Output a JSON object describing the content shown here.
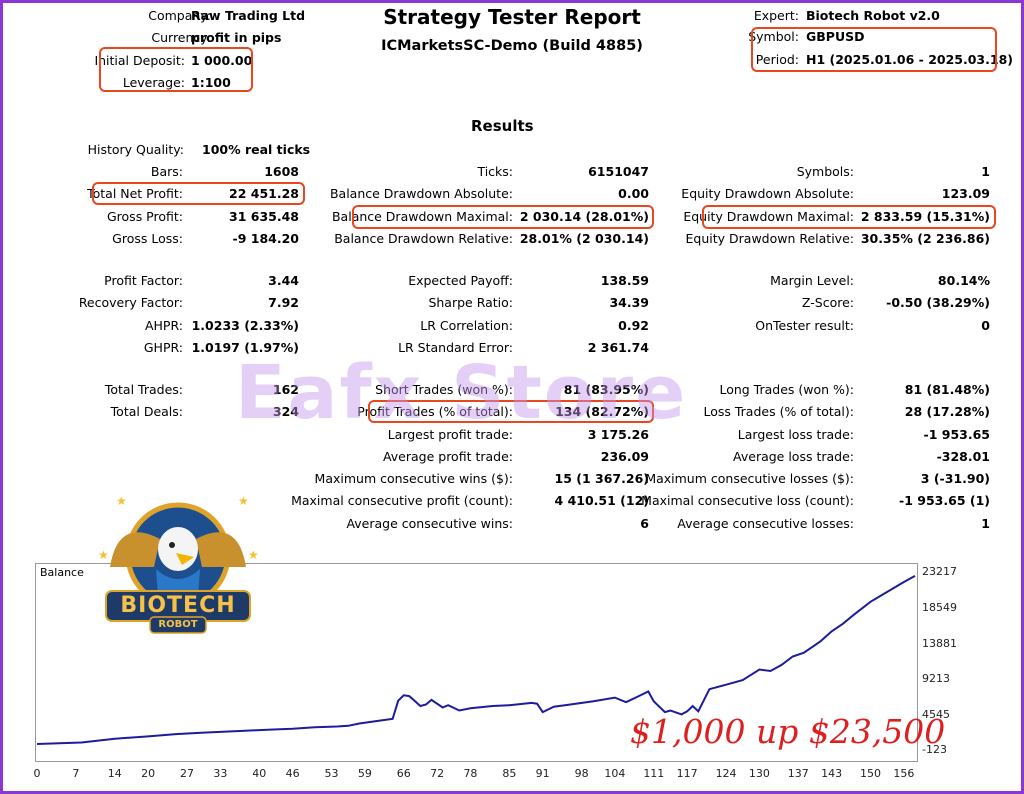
{
  "header": {
    "title": "Strategy Tester Report",
    "subtitle": "ICMarketsSC-Demo (Build 4885)",
    "company_label": "Company:",
    "company_value": "Raw Trading Ltd",
    "currency_label": "Currency:",
    "currency_value": "profit in pips",
    "deposit_label": "Initial Deposit:",
    "deposit_value": "1 000.00",
    "leverage_label": "Leverage:",
    "leverage_value": "1:100",
    "expert_label": "Expert:",
    "expert_value": "Biotech Robot v2.0",
    "symbol_label": "Symbol:",
    "symbol_value": "GBPUSD",
    "period_label": "Period:",
    "period_value": "H1 (2025.01.06 - 2025.03.18)"
  },
  "results": {
    "heading": "Results",
    "history_quality_label": "History Quality:",
    "history_quality_value": "100% real ticks",
    "col1": [
      {
        "label": "Bars:",
        "value": "1608"
      },
      {
        "label": "Total Net Profit:",
        "value": "22 451.28"
      },
      {
        "label": "Gross Profit:",
        "value": "31 635.48"
      },
      {
        "label": "Gross Loss:",
        "value": "-9 184.20"
      },
      {
        "label": "Profit Factor:",
        "value": "3.44"
      },
      {
        "label": "Recovery Factor:",
        "value": "7.92"
      },
      {
        "label": "AHPR:",
        "value": "1.0233 (2.33%)"
      },
      {
        "label": "GHPR:",
        "value": "1.0197 (1.97%)"
      },
      {
        "label": "Total Trades:",
        "value": "162"
      },
      {
        "label": "Total Deals:",
        "value": "324"
      }
    ],
    "col2": [
      {
        "label": "Ticks:",
        "value": "6151047"
      },
      {
        "label": "Balance Drawdown Absolute:",
        "value": "0.00"
      },
      {
        "label": "Balance Drawdown Maximal:",
        "value": "2 030.14 (28.01%)"
      },
      {
        "label": "Balance Drawdown Relative:",
        "value": "28.01% (2 030.14)"
      },
      {
        "label": "Expected Payoff:",
        "value": "138.59"
      },
      {
        "label": "Sharpe Ratio:",
        "value": "34.39"
      },
      {
        "label": "LR Correlation:",
        "value": "0.92"
      },
      {
        "label": "LR Standard Error:",
        "value": "2 361.74"
      },
      {
        "label": "Short Trades (won %):",
        "value": "81 (83.95%)"
      },
      {
        "label": "Profit Trades (% of total):",
        "value": "134 (82.72%)"
      },
      {
        "label": "Largest profit trade:",
        "value": "3 175.26"
      },
      {
        "label": "Average profit trade:",
        "value": "236.09"
      },
      {
        "label": "Maximum consecutive wins ($):",
        "value": "15 (1 367.26)"
      },
      {
        "label": "Maximal consecutive profit (count):",
        "value": "4 410.51 (12)"
      },
      {
        "label": "Average consecutive wins:",
        "value": "6"
      }
    ],
    "col3": [
      {
        "label": "Symbols:",
        "value": "1"
      },
      {
        "label": "Equity Drawdown Absolute:",
        "value": "123.09"
      },
      {
        "label": "Equity Drawdown Maximal:",
        "value": "2 833.59 (15.31%)"
      },
      {
        "label": "Equity Drawdown Relative:",
        "value": "30.35% (2 236.86)"
      },
      {
        "label": "Margin Level:",
        "value": "80.14%"
      },
      {
        "label": "Z-Score:",
        "value": "-0.50 (38.29%)"
      },
      {
        "label": "OnTester result:",
        "value": "0"
      },
      {
        "label": "Long Trades (won %):",
        "value": "81 (81.48%)"
      },
      {
        "label": "Loss Trades (% of total):",
        "value": "28 (17.28%)"
      },
      {
        "label": "Largest loss trade:",
        "value": "-1 953.65"
      },
      {
        "label": "Average loss trade:",
        "value": "-328.01"
      },
      {
        "label": "Maximum consecutive losses ($):",
        "value": "3 (-31.90)"
      },
      {
        "label": "Maximal consecutive loss (count):",
        "value": "-1 953.65 (1)"
      },
      {
        "label": "Average consecutive losses:",
        "value": "1"
      }
    ]
  },
  "overlay": {
    "watermark": "Eafx Store",
    "badge_line1": "BIOTECH",
    "badge_line2": "ROBOT",
    "promo": "$1,000 up $23,500"
  },
  "chart_data": {
    "type": "line",
    "title": "Balance",
    "xlabel": "",
    "ylabel": "",
    "x_ticks": [
      0,
      7,
      14,
      20,
      27,
      33,
      40,
      46,
      53,
      59,
      66,
      72,
      78,
      85,
      91,
      98,
      104,
      111,
      117,
      124,
      130,
      137,
      143,
      150,
      156
    ],
    "y_ticks": [
      -123,
      4545,
      9213,
      13881,
      18549,
      23217
    ],
    "xlim": [
      0,
      158
    ],
    "ylim": [
      -1300,
      24200
    ],
    "series": [
      {
        "name": "Balance",
        "x": [
          0,
          4,
          8,
          14,
          20,
          25,
          30,
          36,
          42,
          46,
          50,
          54,
          56,
          58,
          62,
          64,
          65,
          66,
          67,
          69,
          70,
          71,
          73,
          74,
          76,
          78,
          82,
          85,
          89,
          90,
          91,
          93,
          95,
          100,
          104,
          106,
          108,
          110,
          111,
          113,
          114,
          116,
          117,
          118,
          119,
          121,
          124,
          127,
          130,
          132,
          134,
          136,
          138,
          141,
          143,
          145,
          147,
          150,
          153,
          156,
          158
        ],
        "y": [
          800,
          900,
          1000,
          1500,
          1800,
          2100,
          2300,
          2500,
          2700,
          2800,
          3000,
          3100,
          3200,
          3500,
          3900,
          4100,
          6500,
          7200,
          7100,
          5800,
          6000,
          6600,
          5600,
          5900,
          5200,
          5500,
          5800,
          5900,
          6200,
          6100,
          5000,
          5700,
          5900,
          6400,
          6900,
          6300,
          7000,
          7700,
          6400,
          5000,
          5200,
          4700,
          5100,
          5800,
          5100,
          8000,
          8600,
          9200,
          10600,
          10400,
          11200,
          12300,
          12800,
          14300,
          15600,
          16600,
          17800,
          19500,
          20800,
          22100,
          22900
        ]
      }
    ],
    "legend": "none",
    "grid": false
  }
}
